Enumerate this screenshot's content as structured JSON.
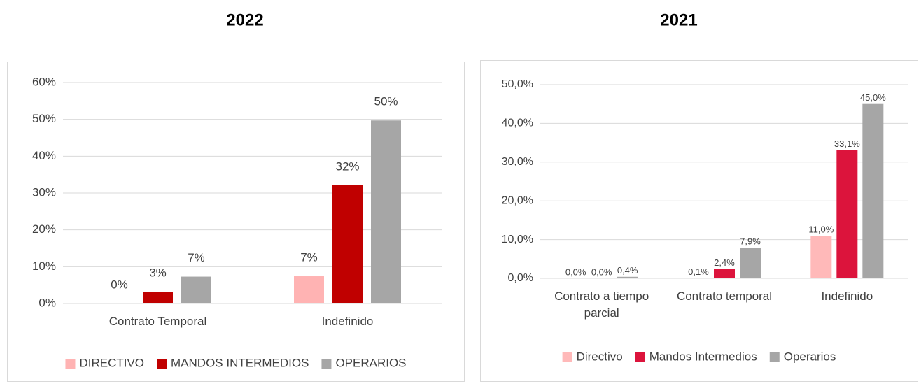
{
  "chart_data": [
    {
      "type": "bar",
      "title": "2022",
      "categories": [
        "Contrato Temporal",
        "Indefinido"
      ],
      "series": [
        {
          "name": "DIRECTIVO",
          "color": "#ffb3b3",
          "values": [
            0,
            7.4
          ],
          "value_labels": [
            "0%",
            "7%"
          ]
        },
        {
          "name": "MANDOS INTERMEDIOS",
          "color": "#c00000",
          "values": [
            3.2,
            32.1
          ],
          "value_labels": [
            "3%",
            "32%"
          ]
        },
        {
          "name": "OPERARIOS",
          "color": "#a6a6a6",
          "values": [
            7.3,
            49.7
          ],
          "value_labels": [
            "7%",
            "50%"
          ]
        }
      ],
      "ylim": [
        0,
        60
      ],
      "yticks": [
        {
          "value": 0,
          "label": "0%"
        },
        {
          "value": 10,
          "label": "10%"
        },
        {
          "value": 20,
          "label": "20%"
        },
        {
          "value": 30,
          "label": "30%"
        },
        {
          "value": 40,
          "label": "40%"
        },
        {
          "value": 50,
          "label": "50%"
        },
        {
          "value": 60,
          "label": "60%"
        }
      ],
      "grid": true,
      "legend": "bottom"
    },
    {
      "type": "bar",
      "title": "2021",
      "categories": [
        "Contrato a tiempo parcial",
        "Contrato temporal",
        "Indefinido"
      ],
      "series": [
        {
          "name": "Directivo",
          "color": "#ffb9b9",
          "values": [
            0.0,
            0.1,
            11.0
          ],
          "value_labels": [
            "0,0%",
            "0,1%",
            "11,0%"
          ]
        },
        {
          "name": "Mandos Intermedios",
          "color": "#dc143c",
          "values": [
            0.0,
            2.4,
            33.1
          ],
          "value_labels": [
            "0,0%",
            "2,4%",
            "33,1%"
          ]
        },
        {
          "name": "Operarios",
          "color": "#a6a6a6",
          "values": [
            0.4,
            7.9,
            45.0
          ],
          "value_labels": [
            "0,4%",
            "7,9%",
            "45,0%"
          ]
        }
      ],
      "ylim": [
        0,
        50
      ],
      "yticks": [
        {
          "value": 0,
          "label": "0,0%"
        },
        {
          "value": 10,
          "label": "10,0%"
        },
        {
          "value": 20,
          "label": "20,0%"
        },
        {
          "value": 30,
          "label": "30,0%"
        },
        {
          "value": 40,
          "label": "40,0%"
        },
        {
          "value": 50,
          "label": "50,0%"
        }
      ],
      "grid": true,
      "legend": "bottom"
    }
  ]
}
